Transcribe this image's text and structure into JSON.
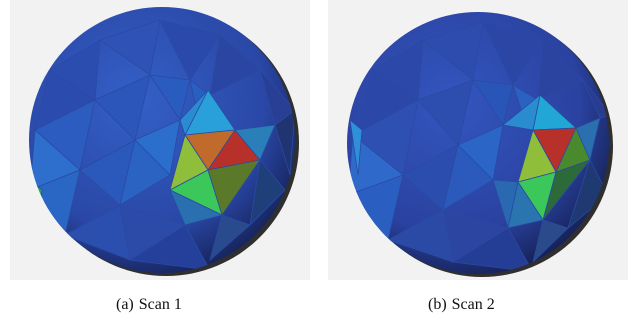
{
  "figure": {
    "panels": [
      {
        "label": "(a)",
        "caption": "Scan 1"
      },
      {
        "label": "(b)",
        "caption": "Scan 2"
      }
    ],
    "colors": {
      "background": "#f2f2f2",
      "sphere_base": "#2b4fb0",
      "sphere_dark": "#1e3277",
      "highlight_cyan": "#22a6d6",
      "highlight_green": "#3cc75a",
      "highlight_yellowgreen": "#8fbf3a",
      "highlight_orange": "#c06a2c",
      "highlight_red": "#b8302a"
    }
  }
}
